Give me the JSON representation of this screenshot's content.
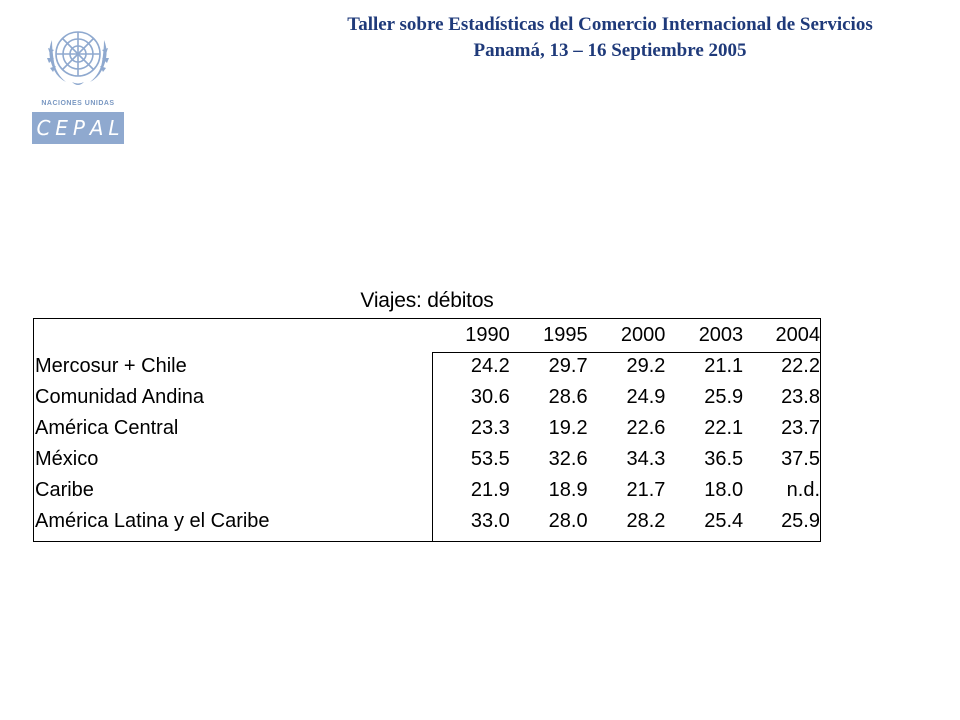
{
  "logo": {
    "org_text": "NACIONES UNIDAS",
    "acronym": [
      "C",
      "E",
      "P",
      "A",
      "L"
    ],
    "color": "#8fa9cf"
  },
  "header": {
    "line1": "Taller sobre Estadísticas del Comercio Internacional de Servicios",
    "line2": "Panamá, 13 – 16 Septiembre 2005",
    "color": "#1f3a7a"
  },
  "table": {
    "title": "Viajes: débitos",
    "columns": [
      "1990",
      "1995",
      "2000",
      "2003",
      "2004"
    ],
    "rows": [
      {
        "name": "Mercosur + Chile",
        "values": [
          "24.2",
          "29.7",
          "29.2",
          "21.1",
          "22.2"
        ]
      },
      {
        "name": "Comunidad Andina",
        "values": [
          "30.6",
          "28.6",
          "24.9",
          "25.9",
          "23.8"
        ]
      },
      {
        "name": "América Central",
        "values": [
          "23.3",
          "19.2",
          "22.6",
          "22.1",
          "23.7"
        ]
      },
      {
        "name": "México",
        "values": [
          "53.5",
          "32.6",
          "34.3",
          "36.5",
          "37.5"
        ]
      },
      {
        "name": "Caribe",
        "values": [
          "21.9",
          "18.9",
          "21.7",
          "18.0",
          "n.d."
        ]
      },
      {
        "name": "América Latina y el Caribe",
        "values": [
          "33.0",
          "28.0",
          "28.2",
          "25.4",
          "25.9"
        ]
      }
    ]
  }
}
